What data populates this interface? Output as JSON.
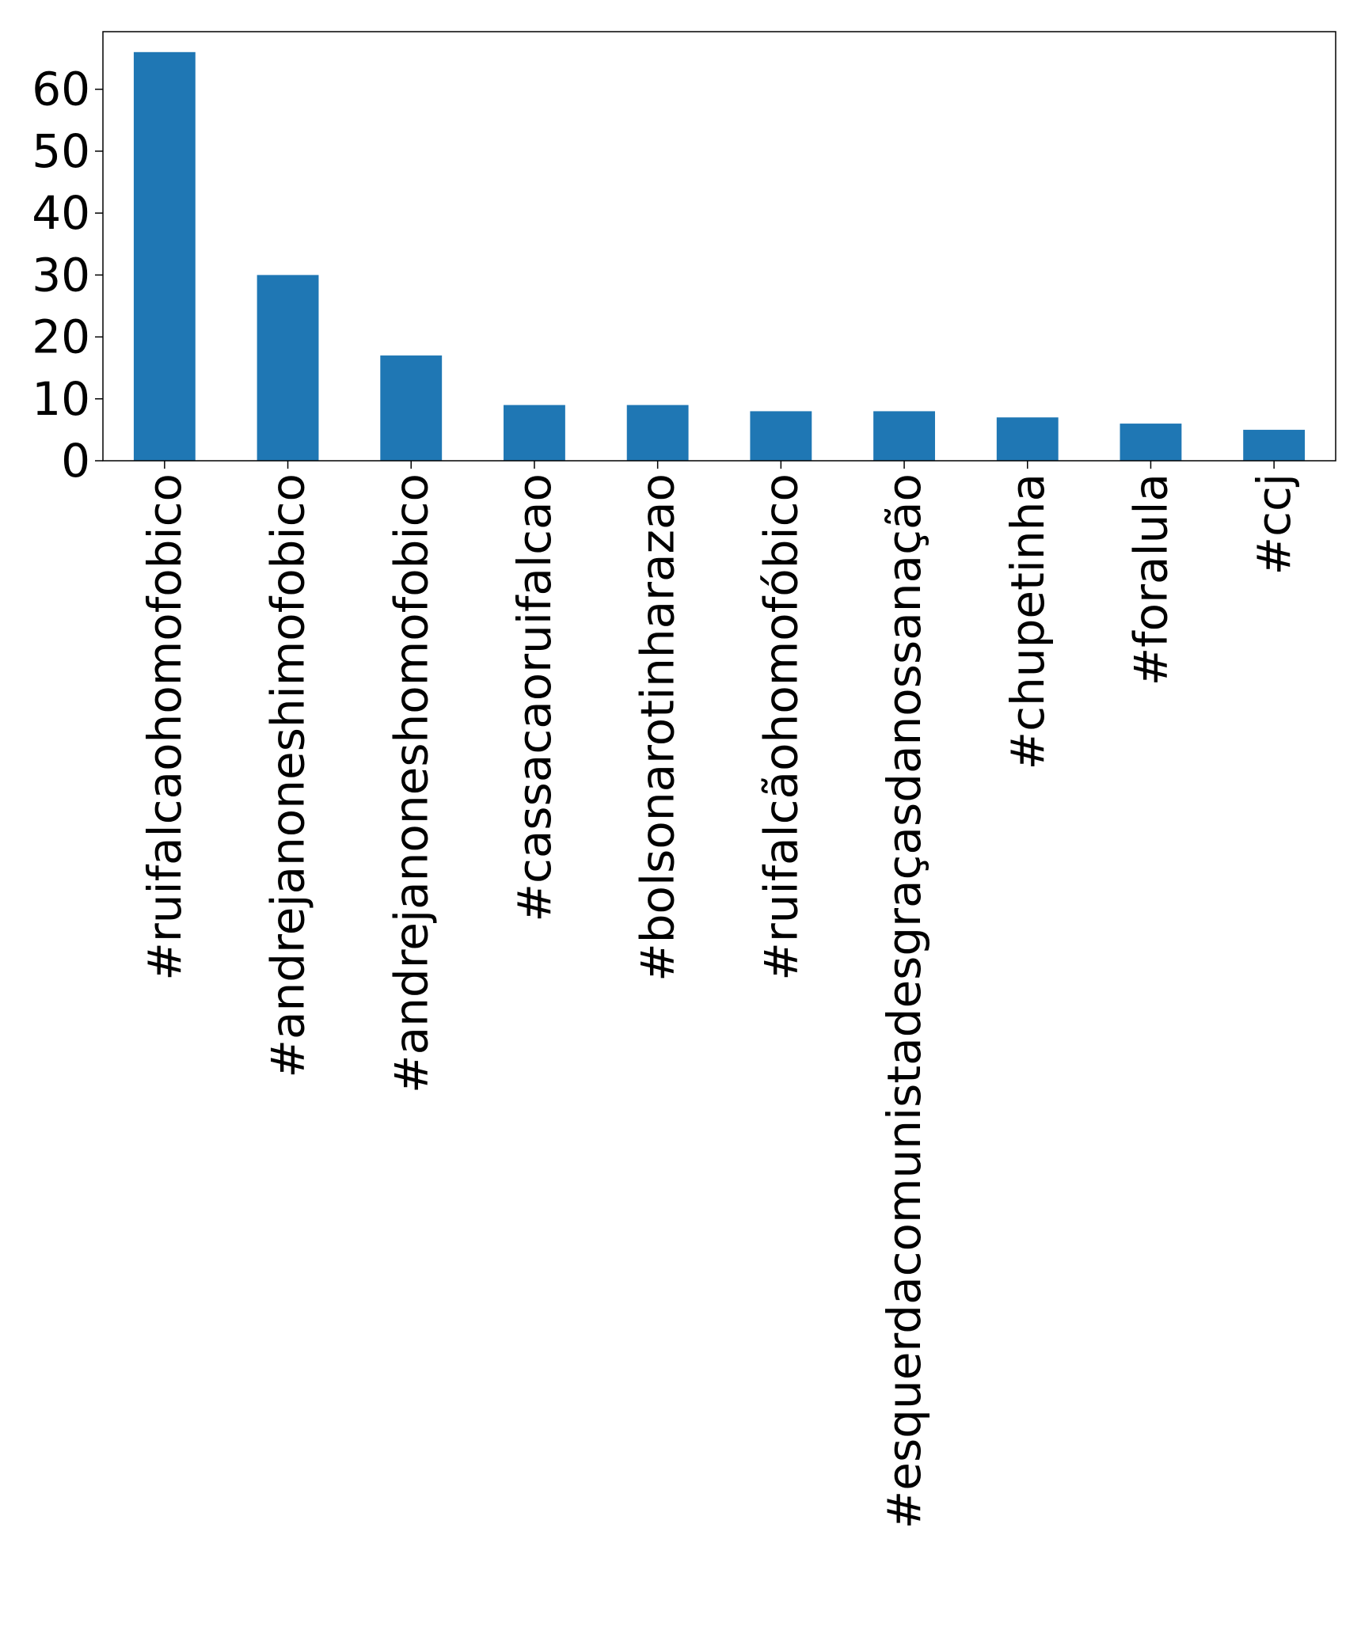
{
  "chart_data": {
    "type": "bar",
    "title": "",
    "xlabel": "",
    "ylabel": "",
    "categories": [
      "#ruifalcaohomofobico",
      "#andrejanoneshimofobico",
      "#andrejanoneshomofobico",
      "#cassacaoruifalcao",
      "#bolsonarotinharazao",
      "#ruifalcãohomofóbico",
      "#esquerdacomunistadesgraçasdanossanação",
      "#chupetinha",
      "#foralula",
      "#ccj"
    ],
    "values": [
      66,
      30,
      17,
      9,
      9,
      8,
      8,
      7,
      6,
      5
    ],
    "ylim": [
      0,
      69.3
    ],
    "yticks": [
      0,
      10,
      20,
      30,
      40,
      50,
      60
    ],
    "grid": false,
    "legend": "none",
    "bar_color": "#1f77b4"
  }
}
